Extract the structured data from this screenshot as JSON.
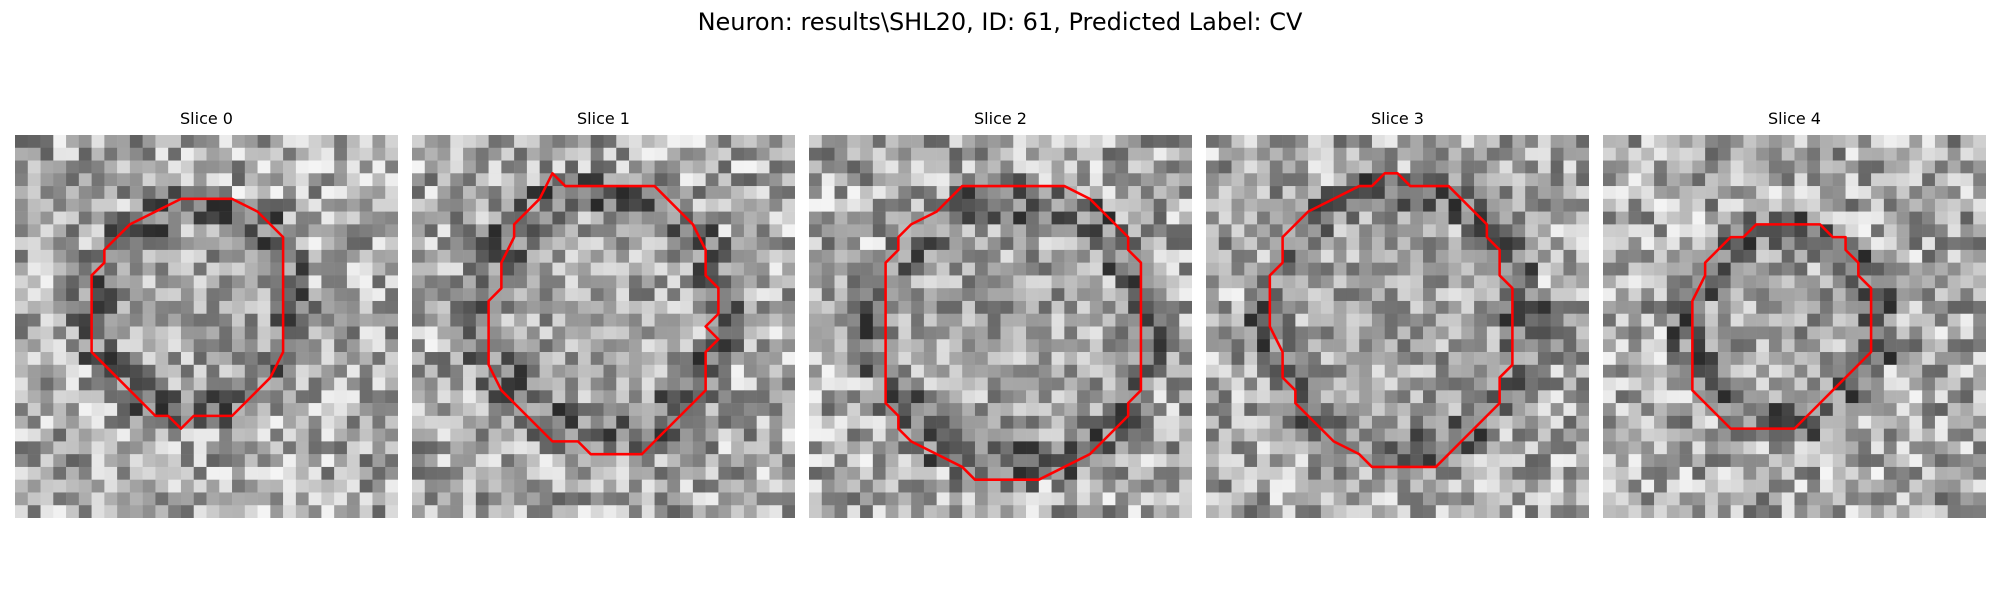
{
  "figure": {
    "title": "Neuron: results\\SHL20, ID: 61, Predicted Label: CV"
  },
  "colors": {
    "contour": "#ff0000",
    "background": "#ffffff"
  },
  "panels": [
    {
      "title": "Slice 0"
    },
    {
      "title": "Slice 1"
    },
    {
      "title": "Slice 2"
    },
    {
      "title": "Slice 3"
    },
    {
      "title": "Slice 4"
    }
  ]
}
